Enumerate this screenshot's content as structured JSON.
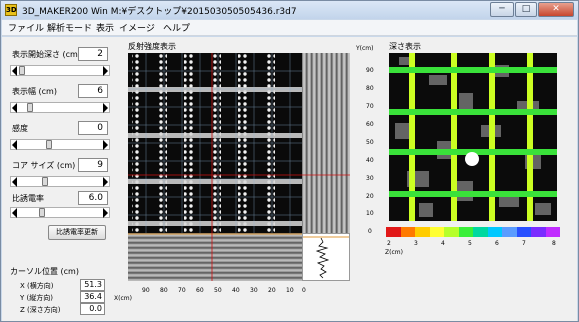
{
  "window": {
    "app_icon": "3D",
    "title": "3D_MAKER200 Win  M:¥デスクトップ¥201503050505436.r3d7",
    "min_label": "─",
    "max_label": "□",
    "close_label": "✕"
  },
  "menu": [
    "ファイル",
    "解析モード",
    "表示",
    "イメージ",
    "ヘルプ"
  ],
  "left_panel": {
    "params": [
      {
        "label": "表示開始深さ (cm)",
        "value": "2",
        "slider_fraction": 0.0
      },
      {
        "label": "表示幅 (cm)",
        "value": "6",
        "slider_fraction": 0.1
      },
      {
        "label": "感度",
        "value": "0",
        "slider_fraction": 0.35
      },
      {
        "label": "コア サイズ (cm)",
        "value": "9",
        "slider_fraction": 0.3
      },
      {
        "label": "比誘電率",
        "value": "6.0",
        "slider_fraction": 0.25
      }
    ],
    "update_button": "比誘電率更新",
    "cursor_title": "カーソル位置 (cm)",
    "cursor": [
      {
        "label": "X (横方向)",
        "value": "51.3"
      },
      {
        "label": "Y (縦方向)",
        "value": "36.4"
      },
      {
        "label": "Z (深さ方向)",
        "value": "0.0"
      }
    ]
  },
  "radar": {
    "title": "反射強度表示",
    "y_unit": "Y(cm)",
    "y_ticks": [
      "90",
      "80",
      "70",
      "60",
      "50",
      "40",
      "30",
      "20",
      "10",
      "0"
    ],
    "x_unit": "X(cm)",
    "x_ticks": [
      "90",
      "80",
      "70",
      "60",
      "50",
      "40",
      "30",
      "20",
      "10",
      "0"
    ]
  },
  "depth": {
    "title": "深さ表示",
    "scale_unit": "Z(cm)",
    "scale_ticks": [
      "2",
      "3",
      "4",
      "5",
      "6",
      "7",
      "8"
    ],
    "colors": [
      "#e11818",
      "#ff7a00",
      "#ffcc00",
      "#ffff33",
      "#b6ff2a",
      "#3aef3a",
      "#00d8a0",
      "#00c8ff",
      "#5a9cff",
      "#2850ff",
      "#7a2cff",
      "#c02cff"
    ]
  }
}
